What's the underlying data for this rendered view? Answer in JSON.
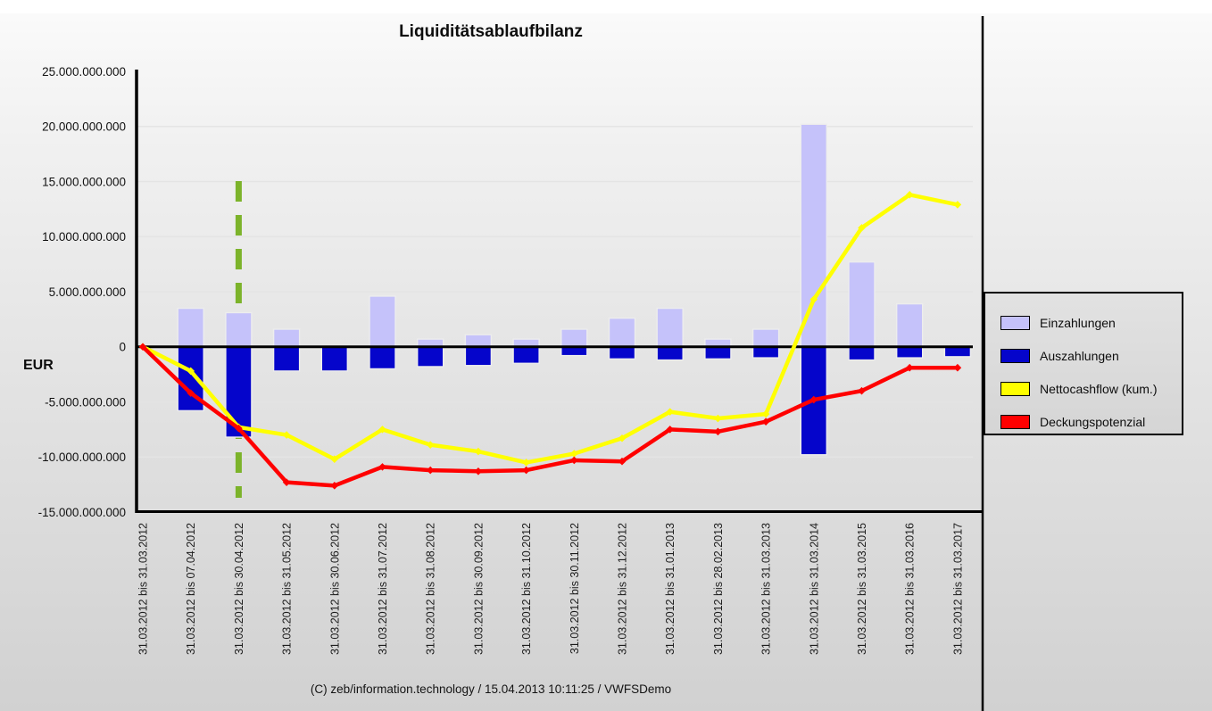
{
  "title": "Liquiditätsablaufbilanz",
  "footer": "(C) zeb/information.technology / 15.04.2013 10:11:25 / VWFSDemo",
  "y_axis": {
    "unit_label": "EUR",
    "tick_labels": [
      "25.000.000.000",
      "20.000.000.000",
      "15.000.000.000",
      "10.000.000.000",
      "5.000.000.000",
      "0",
      "-5.000.000.000",
      "-10.000.000.000",
      "-15.000.000.000"
    ],
    "tick_values": [
      25000000000,
      20000000000,
      15000000000,
      10000000000,
      5000000000,
      0,
      -5000000000,
      -10000000000,
      -15000000000
    ]
  },
  "legend": {
    "position": "right",
    "items": [
      {
        "label": "Einzahlungen",
        "color": "#c5c2fa"
      },
      {
        "label": "Auszahlungen",
        "color": "#0505cb"
      },
      {
        "label": "Nettocashflow (kum.)",
        "color": "#ffff00"
      },
      {
        "label": "Deckungspotenzial",
        "color": "#ff0000"
      }
    ]
  },
  "marker_line": {
    "category": "31.03.2012 bis 30.04.2012",
    "category_index": 2,
    "color": "#7cb32a",
    "style": "dashed"
  },
  "chart_data": {
    "type": "bar",
    "subtype": "combo bar + line",
    "title": "Liquiditätsablaufbilanz",
    "xlabel": "",
    "ylabel": "EUR",
    "ylim": [
      -15000000000,
      25000000000
    ],
    "grid": true,
    "legend_position": "right",
    "categories": [
      "31.03.2012 bis 31.03.2012",
      "31.03.2012 bis 07.04.2012",
      "31.03.2012 bis 30.04.2012",
      "31.03.2012 bis 31.05.2012",
      "31.03.2012 bis 30.06.2012",
      "31.03.2012 bis 31.07.2012",
      "31.03.2012 bis 31.08.2012",
      "31.03.2012 bis 30.09.2012",
      "31.03.2012 bis 31.10.2012",
      "31.03.2012 bis 30.11.2012",
      "31.03.2012 bis 31.12.2012",
      "31.03.2012 bis 31.01.2013",
      "31.03.2012 bis 28.02.2013",
      "31.03.2012 bis 31.03.2013",
      "31.03.2012 bis 31.03.2014",
      "31.03.2012 bis 31.03.2015",
      "31.03.2012 bis 31.03.2016",
      "31.03.2012 bis 31.03.2017"
    ],
    "series": [
      {
        "name": "Einzahlungen",
        "type": "bar",
        "color": "#c5c2fa",
        "values": [
          0,
          3500000000,
          3100000000,
          1600000000,
          0,
          4600000000,
          700000000,
          1100000000,
          700000000,
          1600000000,
          2600000000,
          3500000000,
          700000000,
          1600000000,
          20200000000,
          7700000000,
          3900000000,
          0
        ]
      },
      {
        "name": "Auszahlungen",
        "type": "bar",
        "color": "#0505cb",
        "values": [
          0,
          -5800000000,
          -8200000000,
          -2200000000,
          -2200000000,
          -2000000000,
          -1800000000,
          -1700000000,
          -1500000000,
          -800000000,
          -1100000000,
          -1200000000,
          -1100000000,
          -1000000000,
          -9800000000,
          -1200000000,
          -1000000000,
          -900000000
        ]
      },
      {
        "name": "Nettocashflow (kum.)",
        "type": "line",
        "color": "#ffff00",
        "values": [
          0,
          -2200000000,
          -7300000000,
          -8000000000,
          -10200000000,
          -7500000000,
          -8900000000,
          -9500000000,
          -10500000000,
          -9700000000,
          -8300000000,
          -5900000000,
          -6500000000,
          -6100000000,
          4300000000,
          10800000000,
          13800000000,
          12900000000
        ]
      },
      {
        "name": "Deckungspotenzial",
        "type": "line",
        "color": "#ff0000",
        "values": [
          0,
          -4200000000,
          -7400000000,
          -12300000000,
          -12600000000,
          -10900000000,
          -11200000000,
          -11300000000,
          -11200000000,
          -10300000000,
          -10400000000,
          -7500000000,
          -7700000000,
          -6800000000,
          -4800000000,
          -4000000000,
          -1900000000,
          -1900000000
        ]
      }
    ],
    "annotations": [
      {
        "type": "vertical-dashed-line",
        "category_index": 2,
        "color": "#7cb32a"
      }
    ]
  }
}
